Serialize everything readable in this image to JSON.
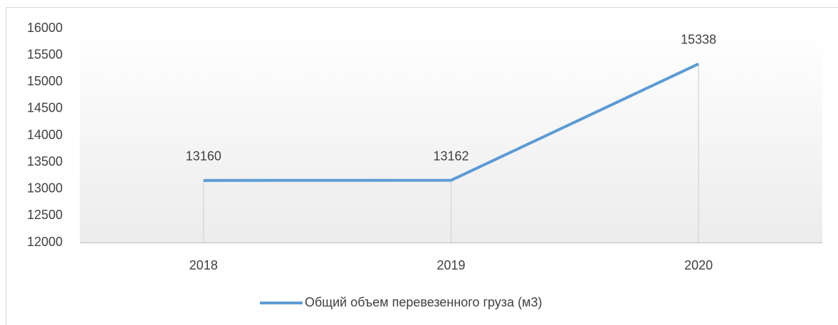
{
  "chart_data": {
    "type": "line",
    "categories": [
      "2018",
      "2019",
      "2020"
    ],
    "series": [
      {
        "name": "Общий объем перевезенного груза (м3)",
        "color": "#5b9bd5",
        "values": [
          13160,
          13162,
          15338
        ]
      }
    ],
    "ylim": [
      12000,
      16000
    ],
    "yticks": [
      12000,
      12500,
      13000,
      13500,
      14000,
      14500,
      15000,
      15500,
      16000
    ],
    "grid": false,
    "legend": "bottom",
    "drop_lines": true
  }
}
